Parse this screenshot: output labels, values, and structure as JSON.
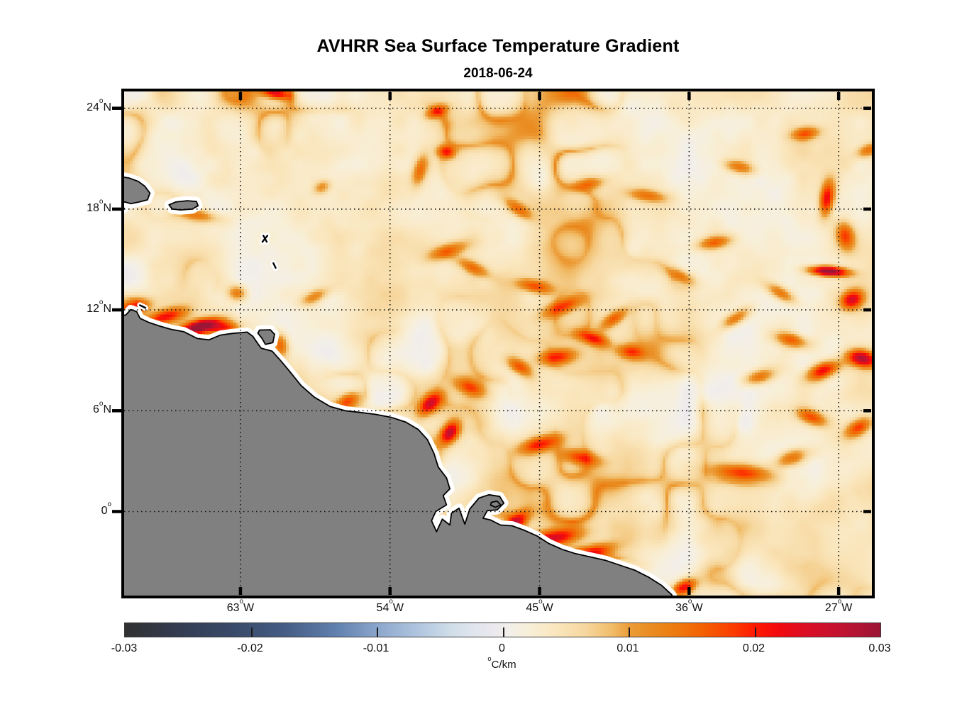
{
  "chart_data": {
    "type": "heatmap",
    "title": "AVHRR Sea Surface Temperature Gradient",
    "subtitle_date": "2018-06-24",
    "projection": "equirectangular lon/lat map",
    "lon_range_degW": [
      70,
      25
    ],
    "lat_range_degN": [
      -5,
      25
    ],
    "grid": "dotted",
    "deg_symbol": "o",
    "x_ticks": [
      {
        "num": "63",
        "suf": "W",
        "lonW": 63
      },
      {
        "num": "54",
        "suf": "W",
        "lonW": 54
      },
      {
        "num": "45",
        "suf": "W",
        "lonW": 45
      },
      {
        "num": "36",
        "suf": "W",
        "lonW": 36
      },
      {
        "num": "27",
        "suf": "W",
        "lonW": 27
      }
    ],
    "y_ticks": [
      {
        "num": "24",
        "suf": "N",
        "latN": 24
      },
      {
        "num": "18",
        "suf": "N",
        "latN": 18
      },
      {
        "num": "12",
        "suf": "N",
        "latN": 12
      },
      {
        "num": "6",
        "suf": "N",
        "latN": 6
      },
      {
        "num": "0",
        "suf": "",
        "latN": 0
      }
    ],
    "colorbar": {
      "min": -0.03,
      "max": 0.03,
      "tick_labels": [
        "-0.03",
        "-0.02",
        "-0.01",
        "0",
        "0.01",
        "0.02",
        "0.03"
      ],
      "unit_deg": "o",
      "unit": "C/km"
    },
    "colormap": [
      [
        0.0,
        "#313131"
      ],
      [
        0.07,
        "#343c51"
      ],
      [
        0.14,
        "#384a68"
      ],
      [
        0.21,
        "#455c83"
      ],
      [
        0.28,
        "#6080ae"
      ],
      [
        0.34,
        "#90aacf"
      ],
      [
        0.39,
        "#b1c6df"
      ],
      [
        0.43,
        "#cfdde9"
      ],
      [
        0.465,
        "#e2e6ee"
      ],
      [
        0.49,
        "#ece9ef"
      ],
      [
        0.51,
        "#f3efe9"
      ],
      [
        0.535,
        "#f8efd8"
      ],
      [
        0.57,
        "#fae6bd"
      ],
      [
        0.61,
        "#f6d79e"
      ],
      [
        0.645,
        "#f1bc69"
      ],
      [
        0.667,
        "#ec9d39"
      ],
      [
        0.7,
        "#e98a1e"
      ],
      [
        0.735,
        "#ee770b"
      ],
      [
        0.77,
        "#f55c02"
      ],
      [
        0.805,
        "#fb3c00"
      ],
      [
        0.833,
        "#fe1b00"
      ],
      [
        0.865,
        "#f20a0e"
      ],
      [
        0.9,
        "#dc0e24"
      ],
      [
        0.95,
        "#c01331"
      ],
      [
        1.0,
        "#9b1535"
      ]
    ],
    "colors": {
      "land": "#808080",
      "coastline": "#000000",
      "coast_halo": "#ffffff",
      "grid": "#111111",
      "frame": "#000000",
      "ocean_background": "#fbeed8"
    },
    "land_polygons": {
      "south_america_mainland": [
        [
          70.3,
          11.62
        ],
        [
          69.9,
          11.7
        ],
        [
          69.6,
          12.02
        ],
        [
          69.25,
          11.9
        ],
        [
          69.05,
          11.5
        ],
        [
          68.5,
          11.25
        ],
        [
          67.9,
          11.05
        ],
        [
          67.2,
          10.85
        ],
        [
          66.4,
          10.7
        ],
        [
          65.6,
          10.3
        ],
        [
          64.9,
          10.22
        ],
        [
          64.2,
          10.5
        ],
        [
          63.5,
          10.6
        ],
        [
          62.6,
          10.68
        ],
        [
          62.25,
          10.42
        ],
        [
          62.0,
          10.05
        ],
        [
          61.75,
          9.72
        ],
        [
          61.1,
          9.55
        ],
        [
          60.6,
          9.0
        ],
        [
          60.05,
          8.35
        ],
        [
          59.35,
          7.5
        ],
        [
          58.55,
          6.8
        ],
        [
          57.6,
          6.25
        ],
        [
          56.7,
          6.0
        ],
        [
          55.8,
          5.9
        ],
        [
          54.85,
          5.78
        ],
        [
          53.9,
          5.6
        ],
        [
          53.05,
          5.32
        ],
        [
          52.3,
          4.88
        ],
        [
          51.75,
          4.28
        ],
        [
          51.35,
          3.45
        ],
        [
          51.1,
          2.65
        ],
        [
          50.6,
          2.0
        ],
        [
          50.4,
          1.35
        ],
        [
          50.8,
          0.95
        ],
        [
          50.6,
          0.4
        ],
        [
          51.25,
          0.0
        ],
        [
          51.5,
          -0.55
        ],
        [
          51.2,
          -1.2
        ],
        [
          50.85,
          -0.45
        ],
        [
          50.4,
          -0.8
        ],
        [
          50.3,
          -0.1
        ],
        [
          49.85,
          0.2
        ],
        [
          49.5,
          -0.75
        ],
        [
          49.2,
          0.15
        ],
        [
          48.65,
          0.8
        ],
        [
          48.05,
          1.0
        ],
        [
          47.4,
          0.9
        ],
        [
          47.15,
          0.5
        ],
        [
          47.55,
          0.1
        ],
        [
          48.15,
          0.05
        ],
        [
          48.4,
          -0.4
        ],
        [
          47.95,
          -0.5
        ],
        [
          47.35,
          -0.8
        ],
        [
          46.65,
          -0.85
        ],
        [
          45.95,
          -1.1
        ],
        [
          45.15,
          -1.45
        ],
        [
          44.45,
          -1.9
        ],
        [
          43.65,
          -2.25
        ],
        [
          42.85,
          -2.5
        ],
        [
          41.95,
          -2.7
        ],
        [
          41.05,
          -2.9
        ],
        [
          40.15,
          -3.2
        ],
        [
          39.25,
          -3.5
        ],
        [
          38.45,
          -3.9
        ],
        [
          37.65,
          -4.4
        ],
        [
          37.05,
          -4.95
        ],
        [
          36.85,
          -5.35
        ],
        [
          70.3,
          -5.35
        ]
      ],
      "hispaniola_east": [
        [
          70.3,
          19.95
        ],
        [
          69.7,
          19.85
        ],
        [
          69.15,
          19.65
        ],
        [
          68.75,
          19.35
        ],
        [
          68.45,
          18.95
        ],
        [
          68.6,
          18.55
        ],
        [
          69.1,
          18.42
        ],
        [
          69.6,
          18.32
        ],
        [
          69.95,
          18.42
        ],
        [
          70.3,
          18.38
        ]
      ],
      "hispaniola_south_tip": [
        [
          70.3,
          18.15
        ],
        [
          70.0,
          18.05
        ],
        [
          70.3,
          17.85
        ]
      ],
      "puerto_rico": [
        [
          67.3,
          18.25
        ],
        [
          66.9,
          18.42
        ],
        [
          66.2,
          18.5
        ],
        [
          65.65,
          18.45
        ],
        [
          65.55,
          18.2
        ],
        [
          65.9,
          18.0
        ],
        [
          66.6,
          17.95
        ],
        [
          67.1,
          18.0
        ]
      ],
      "trinidad": [
        [
          61.85,
          10.8
        ],
        [
          61.2,
          10.82
        ],
        [
          60.95,
          10.55
        ],
        [
          61.05,
          10.05
        ],
        [
          61.5,
          9.95
        ],
        [
          61.7,
          10.3
        ],
        [
          61.95,
          10.62
        ]
      ],
      "marajo_islet": [
        [
          47.9,
          0.55
        ],
        [
          47.55,
          0.62
        ],
        [
          47.35,
          0.4
        ],
        [
          47.65,
          0.25
        ],
        [
          47.95,
          0.38
        ]
      ]
    },
    "coast_marks": [
      [
        61.68,
        16.05,
        61.38,
        16.42
      ],
      [
        61.62,
        16.42,
        61.42,
        16.05
      ],
      [
        61.02,
        14.78,
        60.88,
        14.5
      ],
      [
        69.05,
        12.28,
        68.72,
        12.12
      ]
    ],
    "field": {
      "background_range_C_per_km": [
        -0.004,
        0.008
      ],
      "hotspots_lonW_latN_amp_rx_ry_rot": [
        [
          69.5,
          12.15,
          0.016,
          1.1,
          0.45,
          -12
        ],
        [
          67.5,
          11.6,
          0.017,
          1.3,
          0.45,
          -14
        ],
        [
          65.4,
          11.0,
          0.03,
          1.35,
          0.42,
          -14
        ],
        [
          63.9,
          10.9,
          0.015,
          0.9,
          0.4,
          -6
        ],
        [
          63.2,
          13.0,
          0.012,
          0.6,
          0.5,
          10
        ],
        [
          60.6,
          9.9,
          0.014,
          0.5,
          0.8,
          -10
        ],
        [
          60.9,
          24.9,
          0.02,
          0.9,
          0.35,
          10
        ],
        [
          51.2,
          23.8,
          0.013,
          0.7,
          0.35,
          -20
        ],
        [
          50.6,
          21.4,
          0.015,
          0.55,
          0.4,
          10
        ],
        [
          52.2,
          20.3,
          0.012,
          0.45,
          1.0,
          15
        ],
        [
          58.1,
          19.3,
          0.009,
          0.6,
          0.4,
          -25
        ],
        [
          46.3,
          18.0,
          0.011,
          1.0,
          0.4,
          35
        ],
        [
          65.5,
          17.6,
          0.01,
          1.3,
          0.4,
          8
        ],
        [
          50.5,
          15.5,
          0.012,
          1.3,
          0.45,
          -18
        ],
        [
          49.0,
          14.5,
          0.011,
          1.2,
          0.4,
          25
        ],
        [
          45.3,
          13.4,
          0.013,
          1.1,
          0.4,
          12
        ],
        [
          43.6,
          12.2,
          0.014,
          1.3,
          0.45,
          -22
        ],
        [
          41.8,
          10.3,
          0.015,
          1.0,
          0.4,
          18
        ],
        [
          43.9,
          9.2,
          0.016,
          1.2,
          0.5,
          -8
        ],
        [
          46.2,
          8.6,
          0.014,
          0.9,
          0.45,
          32
        ],
        [
          40.5,
          11.5,
          0.012,
          1.0,
          0.4,
          -35
        ],
        [
          39.5,
          9.5,
          0.013,
          0.9,
          0.45,
          5
        ],
        [
          51.6,
          6.4,
          0.02,
          0.85,
          0.5,
          -42
        ],
        [
          50.4,
          4.7,
          0.022,
          0.8,
          0.5,
          -55
        ],
        [
          49.2,
          7.4,
          0.013,
          1.1,
          0.5,
          22
        ],
        [
          56.5,
          6.6,
          0.014,
          0.8,
          0.45,
          -25
        ],
        [
          45.0,
          4.0,
          0.016,
          1.3,
          0.5,
          -15
        ],
        [
          42.5,
          3.2,
          0.012,
          1.2,
          0.45,
          10
        ],
        [
          44.2,
          -1.6,
          0.02,
          1.7,
          0.5,
          -10
        ],
        [
          41.8,
          -2.4,
          0.015,
          1.4,
          0.45,
          -12
        ],
        [
          46.4,
          -0.6,
          0.016,
          0.9,
          0.45,
          -35
        ],
        [
          36.3,
          -4.5,
          0.02,
          0.8,
          0.45,
          -25
        ],
        [
          32.8,
          2.3,
          0.016,
          2.0,
          0.55,
          6
        ],
        [
          29.8,
          3.2,
          0.013,
          1.1,
          0.5,
          -18
        ],
        [
          27.6,
          14.3,
          0.03,
          1.2,
          0.3,
          4
        ],
        [
          26.2,
          12.6,
          0.02,
          0.75,
          0.55,
          -28
        ],
        [
          25.6,
          9.1,
          0.024,
          0.95,
          0.5,
          12
        ],
        [
          27.9,
          8.4,
          0.02,
          1.1,
          0.5,
          -22
        ],
        [
          29.8,
          10.2,
          0.014,
          1.1,
          0.45,
          14
        ],
        [
          26.6,
          16.4,
          0.016,
          0.6,
          0.9,
          -12
        ],
        [
          27.7,
          18.6,
          0.02,
          0.45,
          1.1,
          8
        ],
        [
          25.2,
          21.5,
          0.012,
          0.8,
          0.4,
          -18
        ],
        [
          30.5,
          13.0,
          0.012,
          1.0,
          0.4,
          30
        ],
        [
          31.8,
          8.0,
          0.013,
          1.0,
          0.45,
          -15
        ],
        [
          28.6,
          5.6,
          0.014,
          1.0,
          0.45,
          20
        ],
        [
          25.8,
          5.0,
          0.016,
          0.9,
          0.5,
          -30
        ],
        [
          34.5,
          16.0,
          0.012,
          1.1,
          0.4,
          -10
        ],
        [
          36.5,
          14.0,
          0.011,
          0.9,
          0.4,
          25
        ],
        [
          33.2,
          11.5,
          0.012,
          1.0,
          0.4,
          -30
        ],
        [
          38.5,
          18.8,
          0.011,
          1.3,
          0.4,
          8
        ],
        [
          42.0,
          19.5,
          0.01,
          1.0,
          0.4,
          -12
        ],
        [
          33.0,
          20.5,
          0.011,
          1.0,
          0.4,
          12
        ],
        [
          29.0,
          22.5,
          0.012,
          0.9,
          0.4,
          -8
        ],
        [
          58.5,
          12.8,
          0.01,
          1.0,
          0.4,
          -25
        ]
      ]
    }
  }
}
